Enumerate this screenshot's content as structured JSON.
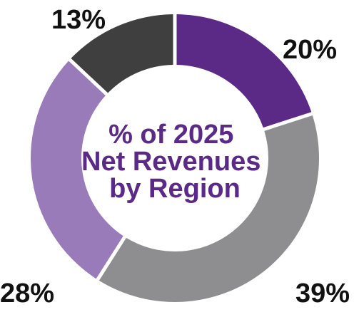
{
  "chart_data": {
    "type": "pie",
    "donut": true,
    "title_lines": [
      "% of 2025",
      "Net Revenues",
      "by Region"
    ],
    "title_color": "#5B2A86",
    "slices": [
      {
        "value": 20,
        "label": "20%",
        "color": "#5B2A86"
      },
      {
        "value": 39,
        "label": "39%",
        "color": "#8E8D8F"
      },
      {
        "value": 28,
        "label": "28%",
        "color": "#9A7BB9"
      },
      {
        "value": 13,
        "label": "13%",
        "color": "#3F3F40"
      }
    ],
    "legend": "none"
  }
}
